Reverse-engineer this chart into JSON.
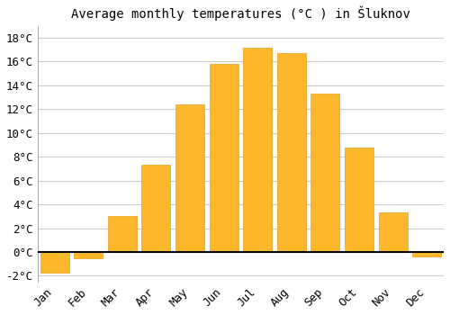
{
  "title": "Average monthly temperatures (°C ) in Šluknov",
  "months": [
    "Jan",
    "Feb",
    "Mar",
    "Apr",
    "May",
    "Jun",
    "Jul",
    "Aug",
    "Sep",
    "Oct",
    "Nov",
    "Dec"
  ],
  "values": [
    -1.7,
    -0.5,
    3.0,
    7.3,
    12.4,
    15.8,
    17.2,
    16.7,
    13.3,
    8.8,
    3.3,
    -0.4
  ],
  "bar_color": "#FDB72A",
  "bar_edge_color": "#E8A020",
  "ylim": [
    -2.5,
    19
  ],
  "yticks": [
    -2,
    0,
    2,
    4,
    6,
    8,
    10,
    12,
    14,
    16,
    18
  ],
  "ytick_labels": [
    "-2°C",
    "0°C",
    "2°C",
    "4°C",
    "6°C",
    "8°C",
    "10°C",
    "12°C",
    "14°C",
    "16°C",
    "18°C"
  ],
  "bg_color": "#ffffff",
  "plot_bg_color": "#ffffff",
  "grid_color": "#cccccc",
  "title_fontsize": 10,
  "tick_fontsize": 9,
  "bar_width": 0.85,
  "figsize": [
    5.0,
    3.5
  ],
  "dpi": 100
}
